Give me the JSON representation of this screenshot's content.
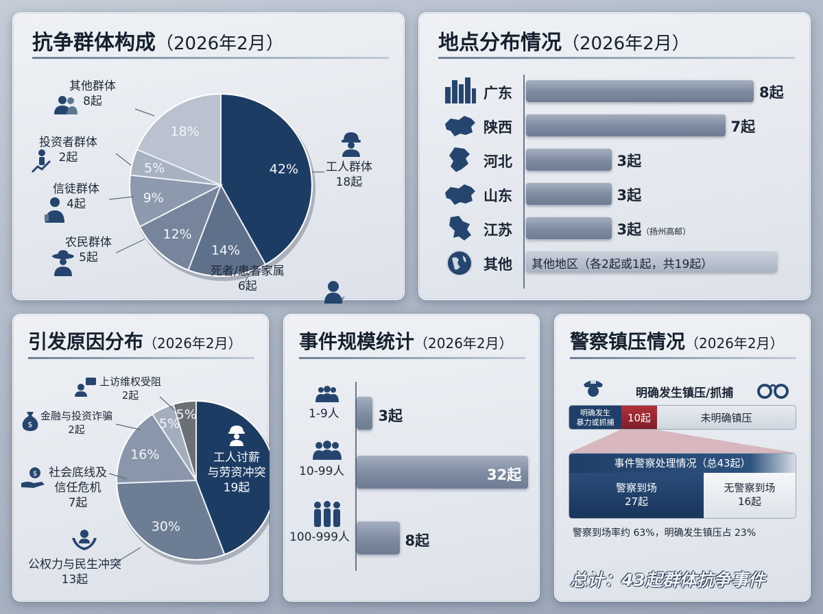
{
  "composition": {
    "title": "抗争群体构成",
    "subtitle": "（2026年2月）",
    "groups": [
      {
        "name": "工人群体",
        "count": "18起",
        "pct": "42%",
        "icon": "worker-icon"
      },
      {
        "name": "死者/患者家属",
        "count": "6起",
        "pct": "14%",
        "icon": "mourning-woman-icon"
      },
      {
        "name": "农民群体",
        "count": "5起",
        "pct": "12%",
        "icon": "farmer-icon"
      },
      {
        "name": "信徒群体",
        "count": "4起",
        "pct": "9%",
        "icon": "believer-icon"
      },
      {
        "name": "投资者群体",
        "count": "2起",
        "pct": "5%",
        "icon": "investor-chart-icon"
      },
      {
        "name": "其他群体",
        "count": "8起",
        "pct": "18%",
        "icon": "people-group-icon"
      }
    ]
  },
  "location": {
    "title": "地点分布情况",
    "subtitle": "（2026年2月）",
    "regions": [
      {
        "name": "广东",
        "count": "8起",
        "value": 8,
        "note": "",
        "icon": "city-skyline-icon"
      },
      {
        "name": "陕西",
        "count": "7起",
        "value": 7,
        "note": "",
        "icon": "china-map-icon"
      },
      {
        "name": "河北",
        "count": "3起",
        "value": 3,
        "note": "",
        "icon": "hebei-map-icon"
      },
      {
        "name": "山东",
        "count": "3起",
        "value": 3,
        "note": "",
        "icon": "china-map-icon"
      },
      {
        "name": "江苏",
        "count": "3起",
        "value": 3,
        "note": "（扬州高邮）",
        "icon": "jiangsu-map-icon"
      }
    ],
    "other": {
      "name": "其他",
      "text": "其他地区（各2起或1起，共19起）",
      "icon": "globe-icon"
    }
  },
  "causes": {
    "title": "引发原因分布",
    "subtitle": "（2026年2月）",
    "items": [
      {
        "name": "工人讨薪与劳资冲突",
        "count": "19起",
        "pct": "",
        "icon": "worker-icon"
      },
      {
        "name": "公权力与民生冲突",
        "count": "13起",
        "pct": "30%",
        "icon": "hands-people-icon"
      },
      {
        "name": "社会底线及信任危机",
        "count": "7起",
        "pct": "16%",
        "icon": "hand-coin-icon"
      },
      {
        "name": "金融与投资诈骗",
        "count": "2起",
        "pct": "5%",
        "icon": "money-bag-icon"
      },
      {
        "name": "上访维权受阻",
        "count": "2起",
        "pct": "5%",
        "icon": "petition-icon"
      }
    ],
    "wedge_lines": [
      "工人讨薪",
      "与劳资冲突",
      "19起"
    ],
    "label_lines": {
      "public": [
        "公权力与民生冲突",
        "13起"
      ],
      "social": [
        "社会底线及",
        "信任危机",
        "7起"
      ],
      "finance": [
        "金融与投资诈骗",
        "2起"
      ],
      "petition": [
        "上访维权受阻",
        "2起"
      ]
    }
  },
  "scale": {
    "title": "事件规模统计",
    "subtitle": "（2026年2月）",
    "items": [
      {
        "label": "1-9人",
        "count": "3起",
        "value": 3
      },
      {
        "label": "10-99人",
        "count": "32起",
        "value": 32
      },
      {
        "label": "100-999人",
        "count": "8起",
        "value": 8
      }
    ]
  },
  "police": {
    "title": "警察镇压情况",
    "subtitle": "（2026年2月）",
    "crackdown_header": "明确发生镇压/抓捕",
    "seg1": "明确发生\n暴力或抓捕",
    "seg2": "10起",
    "seg3": "未明确镇压",
    "handling_title": "事件警察处理情况（总43起）",
    "arrived_label": "警察到场",
    "arrived_count": "27起",
    "absent_label": "无警察到场",
    "absent_count": "16起",
    "rate_text": "警察到场率约 63%，明确发生镇压占 23%",
    "total_text": "总计：43起群体抗争事件"
  },
  "chart_data": [
    {
      "type": "pie",
      "title": "抗争群体构成（2026年2月）",
      "categories": [
        "工人群体",
        "死者/患者家属",
        "农民群体",
        "信徒群体",
        "投资者群体",
        "其他群体"
      ],
      "values": [
        18,
        6,
        5,
        4,
        2,
        8
      ],
      "percent_labels": [
        42,
        14,
        12,
        9,
        5,
        18
      ]
    },
    {
      "type": "bar",
      "title": "地点分布情况（2026年2月）",
      "categories": [
        "广东",
        "陕西",
        "河北",
        "山东",
        "江苏"
      ],
      "values": [
        8,
        7,
        3,
        3,
        3
      ]
    },
    {
      "type": "pie",
      "title": "引发原因分布（2026年2月）",
      "categories": [
        "工人讨薪与劳资冲突",
        "公权力与民生冲突",
        "社会底线及信任危机",
        "金融与投资诈骗",
        "上访维权受阻"
      ],
      "values": [
        19,
        13,
        7,
        2,
        2
      ],
      "percent_labels": [
        null,
        30,
        16,
        5,
        5
      ]
    },
    {
      "type": "bar",
      "title": "事件规模统计（2026年2月）",
      "categories": [
        "1-9人",
        "10-99人",
        "100-999人"
      ],
      "values": [
        3,
        32,
        8
      ]
    },
    {
      "type": "bar",
      "title": "警察镇压情况（2026年2月）",
      "categories": [
        "明确发生暴力或抓捕",
        "未明确镇压",
        "警察到场",
        "无警察到场"
      ],
      "values": [
        10,
        33,
        27,
        16
      ]
    }
  ]
}
